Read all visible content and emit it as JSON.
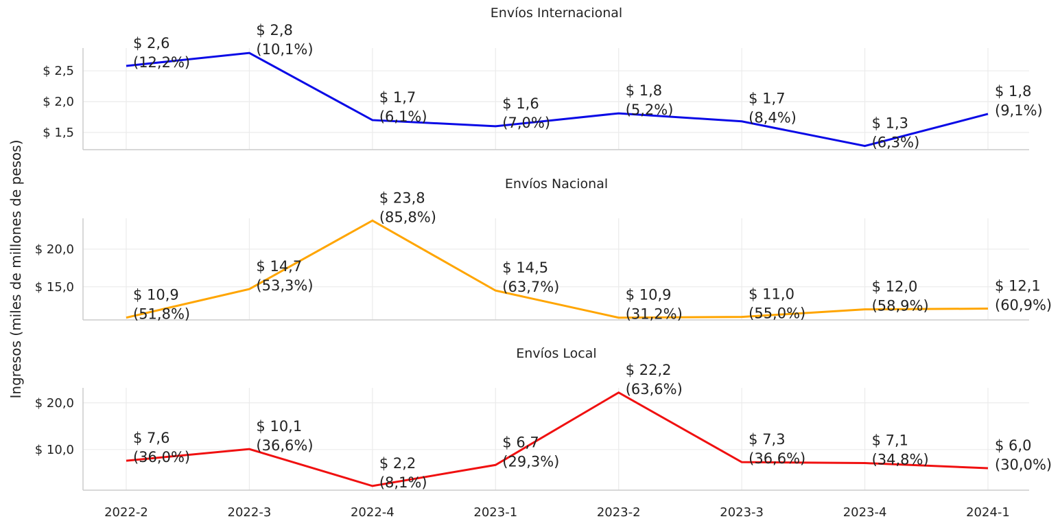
{
  "ylabel": "Ingresos (miles de millones de pesos)",
  "chart_data": [
    {
      "type": "line",
      "title": "Envíos Internacional",
      "categories": [
        "2022-2",
        "2022-3",
        "2022-4",
        "2023-1",
        "2023-2",
        "2023-3",
        "2023-4",
        "2024-1"
      ],
      "series": [
        {
          "name": "Envíos Internacional",
          "color": "#0a0ae6",
          "values": [
            2.58,
            2.79,
            1.7,
            1.6,
            1.81,
            1.68,
            1.28,
            1.8
          ],
          "value_labels": [
            "$ 2,6",
            "$ 2,8",
            "$ 1,7",
            "$ 1,6",
            "$ 1,8",
            "$ 1,7",
            "$ 1,3",
            "$ 1,8"
          ],
          "shares": [
            12.2,
            10.1,
            6.1,
            7.0,
            5.2,
            8.4,
            6.3,
            9.1
          ],
          "share_labels": [
            "(12,2%)",
            "(10,1%)",
            "(6,1%)",
            "(7,0%)",
            "(5,2%)",
            "(8,4%)",
            "(6,3%)",
            "(9,1%)"
          ]
        }
      ],
      "ylim": [
        1.22,
        2.87
      ],
      "yticks": [
        {
          "value": 1.5,
          "label": "$ 1,5"
        },
        {
          "value": 2.0,
          "label": "$ 2,0"
        },
        {
          "value": 2.5,
          "label": "$ 2,5"
        }
      ],
      "grid": true
    },
    {
      "type": "line",
      "title": "Envíos Nacional",
      "categories": [
        "2022-2",
        "2022-3",
        "2022-4",
        "2023-1",
        "2023-2",
        "2023-3",
        "2023-4",
        "2024-1"
      ],
      "series": [
        {
          "name": "Envíos Nacional",
          "color": "#ffa500",
          "values": [
            10.9,
            14.7,
            23.8,
            14.5,
            10.9,
            11.0,
            12.0,
            12.1
          ],
          "value_labels": [
            "$ 10,9",
            "$ 14,7",
            "$ 23,8",
            "$ 14,5",
            "$ 10,9",
            "$ 11,0",
            "$ 12,0",
            "$ 12,1"
          ],
          "shares": [
            51.8,
            53.3,
            85.8,
            63.7,
            31.2,
            55.0,
            58.9,
            60.9
          ],
          "share_labels": [
            "(51,8%)",
            "(53,3%)",
            "(85,8%)",
            "(63,7%)",
            "(31,2%)",
            "(55,0%)",
            "(58,9%)",
            "(60,9%)"
          ]
        }
      ],
      "ylim": [
        10.6,
        24.1
      ],
      "yticks": [
        {
          "value": 15.0,
          "label": "$ 15,0"
        },
        {
          "value": 20.0,
          "label": "$ 20,0"
        }
      ],
      "grid": true
    },
    {
      "type": "line",
      "title": "Envíos Local",
      "categories": [
        "2022-2",
        "2022-3",
        "2022-4",
        "2023-1",
        "2023-2",
        "2023-3",
        "2023-4",
        "2024-1"
      ],
      "series": [
        {
          "name": "Envíos Local",
          "color": "#f01010",
          "values": [
            7.6,
            10.1,
            2.2,
            6.7,
            22.2,
            7.3,
            7.1,
            6.0
          ],
          "value_labels": [
            "$ 7,6",
            "$ 10,1",
            "$ 2,2",
            "$ 6,7",
            "$ 22,2",
            "$ 7,3",
            "$ 7,1",
            "$ 6,0"
          ],
          "shares": [
            36.0,
            36.6,
            8.1,
            29.3,
            63.6,
            36.6,
            34.8,
            30.0
          ],
          "share_labels": [
            "(36,0%)",
            "(36,6%)",
            "(8,1%)",
            "(29,3%)",
            "(63,6%)",
            "(36,6%)",
            "(34,8%)",
            "(30,0%)"
          ]
        }
      ],
      "ylim": [
        1.3,
        23.2
      ],
      "yticks": [
        {
          "value": 10.0,
          "label": "$ 10,0"
        },
        {
          "value": 20.0,
          "label": "$ 20,0"
        }
      ],
      "grid": true
    }
  ]
}
